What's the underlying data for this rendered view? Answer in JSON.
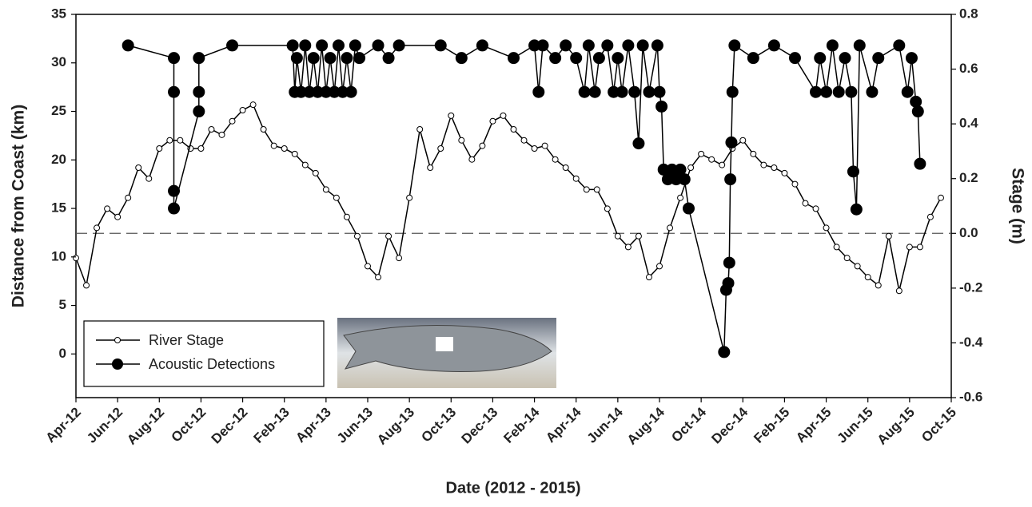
{
  "chart_data": {
    "type": "line",
    "xlabel": "Date (2012 - 2015)",
    "ylabel": "Distance from Coast (km)",
    "y2label": "Stage (m)",
    "xlim": [
      0,
      42
    ],
    "xticks": [
      {
        "value": 0,
        "label": "Apr-12"
      },
      {
        "value": 2,
        "label": "Jun-12"
      },
      {
        "value": 4,
        "label": "Aug-12"
      },
      {
        "value": 6,
        "label": "Oct-12"
      },
      {
        "value": 8,
        "label": "Dec-12"
      },
      {
        "value": 10,
        "label": "Feb-13"
      },
      {
        "value": 12,
        "label": "Apr-13"
      },
      {
        "value": 14,
        "label": "Jun-13"
      },
      {
        "value": 16,
        "label": "Aug-13"
      },
      {
        "value": 18,
        "label": "Oct-13"
      },
      {
        "value": 20,
        "label": "Dec-13"
      },
      {
        "value": 22,
        "label": "Feb-14"
      },
      {
        "value": 24,
        "label": "Apr-14"
      },
      {
        "value": 26,
        "label": "Jun-14"
      },
      {
        "value": 28,
        "label": "Aug-14"
      },
      {
        "value": 30,
        "label": "Oct-14"
      },
      {
        "value": 32,
        "label": "Dec-14"
      },
      {
        "value": 34,
        "label": "Feb-15"
      },
      {
        "value": 36,
        "label": "Apr-15"
      },
      {
        "value": 38,
        "label": "Jun-15"
      },
      {
        "value": 40,
        "label": "Aug-15"
      },
      {
        "value": 42,
        "label": "Oct-15"
      }
    ],
    "ylim": [
      -4.5,
      35
    ],
    "yticks": [
      0,
      5,
      10,
      15,
      20,
      25,
      30,
      35
    ],
    "y2lim": [
      -0.6,
      0.8
    ],
    "y2ticks": [
      -0.6,
      -0.4,
      -0.2,
      {
        "value": 0,
        "label": "0.0"
      },
      0.2,
      0.4,
      0.6,
      0.8
    ],
    "y2_reference_line": 0,
    "legend_position": "lower left",
    "series": [
      {
        "name": "River Stage",
        "axis": "y2",
        "color": "#000000",
        "marker": "open",
        "x": [
          0,
          0.5,
          1,
          1.5,
          2,
          2.5,
          3,
          3.5,
          4,
          4.5,
          5,
          5.5,
          6,
          6.5,
          7,
          7.5,
          8,
          8.5,
          9,
          9.5,
          10,
          10.5,
          11,
          11.5,
          12,
          12.5,
          13,
          13.5,
          14,
          14.5,
          15,
          15.5,
          16,
          16.5,
          17,
          17.5,
          18,
          18.5,
          19,
          19.5,
          20,
          20.5,
          21,
          21.5,
          22,
          22.5,
          23,
          23.5,
          24,
          24.5,
          25,
          25.5,
          26,
          26.5,
          27,
          27.5,
          28,
          28.5,
          29,
          29.5,
          30,
          30.5,
          31,
          31.5,
          32,
          32.5,
          33,
          33.5,
          34,
          34.5,
          35,
          35.5,
          36,
          36.5,
          37,
          37.5,
          38,
          38.5,
          39,
          39.5,
          40,
          40.5,
          41,
          41.5
        ],
        "values": [
          -0.09,
          -0.19,
          0.02,
          0.09,
          0.06,
          0.13,
          0.24,
          0.2,
          0.31,
          0.34,
          0.34,
          0.31,
          0.31,
          0.38,
          0.36,
          0.41,
          0.45,
          0.47,
          0.38,
          0.32,
          0.31,
          0.29,
          0.25,
          0.22,
          0.16,
          0.13,
          0.06,
          -0.01,
          -0.12,
          -0.16,
          -0.01,
          -0.09,
          0.13,
          0.38,
          0.24,
          0.31,
          0.43,
          0.34,
          0.27,
          0.32,
          0.41,
          0.43,
          0.38,
          0.34,
          0.31,
          0.32,
          0.27,
          0.24,
          0.2,
          0.16,
          0.16,
          0.09,
          -0.01,
          -0.05,
          -0.01,
          -0.16,
          -0.12,
          0.02,
          0.13,
          0.24,
          0.29,
          0.27,
          0.25,
          0.31,
          0.34,
          0.29,
          0.25,
          0.24,
          0.22,
          0.18,
          0.11,
          0.09,
          0.02,
          -0.05,
          -0.09,
          -0.12,
          -0.16,
          -0.19,
          -0.01,
          -0.21,
          -0.05,
          -0.05,
          0.06,
          0.13
        ]
      },
      {
        "name": "Acoustic Detections",
        "axis": "y",
        "color": "#000000",
        "marker": "filled",
        "x": [
          2.5,
          4.7,
          4.7,
          4.7,
          4.7,
          5.9,
          5.9,
          5.9,
          7.5,
          10.4,
          10.5,
          10.6,
          10.8,
          11,
          11.2,
          11.4,
          11.6,
          11.8,
          12,
          12.2,
          12.4,
          12.6,
          12.8,
          13,
          13.2,
          13.4,
          13.6,
          14.5,
          15,
          15.5,
          17.5,
          18.5,
          19.5,
          21,
          22,
          22.2,
          22.4,
          23,
          23.5,
          24,
          24.4,
          24.6,
          24.9,
          25.1,
          25.5,
          25.8,
          26,
          26.2,
          26.5,
          26.8,
          27,
          27.2,
          27.5,
          27.9,
          28,
          28.1,
          28.2,
          28.4,
          28.6,
          28.8,
          29,
          29.2,
          29.4,
          31.1,
          31.2,
          31.3,
          31.35,
          31.4,
          31.45,
          31.5,
          31.6,
          32.5,
          33.5,
          34.5,
          35.5,
          35.7,
          36,
          36.3,
          36.6,
          36.9,
          37.2,
          37.3,
          37.45,
          37.6,
          38.2,
          38.5,
          39.5,
          39.9,
          40.1,
          40.3,
          40.4,
          40.5
        ],
        "values": [
          31.8,
          30.5,
          27,
          16.8,
          15,
          25,
          27,
          30.5,
          31.8,
          31.8,
          27,
          30.5,
          27,
          31.8,
          27,
          30.5,
          27,
          31.8,
          27,
          30.5,
          27,
          31.8,
          27,
          30.5,
          27,
          31.8,
          30.5,
          31.8,
          30.5,
          31.8,
          31.8,
          30.5,
          31.8,
          30.5,
          31.8,
          27,
          31.8,
          30.5,
          31.8,
          30.5,
          27,
          31.8,
          27,
          30.5,
          31.8,
          27,
          30.5,
          27,
          31.8,
          27,
          21.7,
          31.8,
          27,
          31.8,
          27,
          25.5,
          19,
          18,
          19,
          18,
          19,
          18,
          15,
          0.2,
          6.6,
          7.3,
          9.4,
          18,
          21.8,
          27,
          31.8,
          30.5,
          31.8,
          30.5,
          27,
          30.5,
          27,
          31.8,
          27,
          30.5,
          27,
          18.8,
          14.9,
          31.8,
          27,
          30.5,
          31.8,
          27,
          30.5,
          26,
          25,
          19.6
        ]
      }
    ]
  }
}
